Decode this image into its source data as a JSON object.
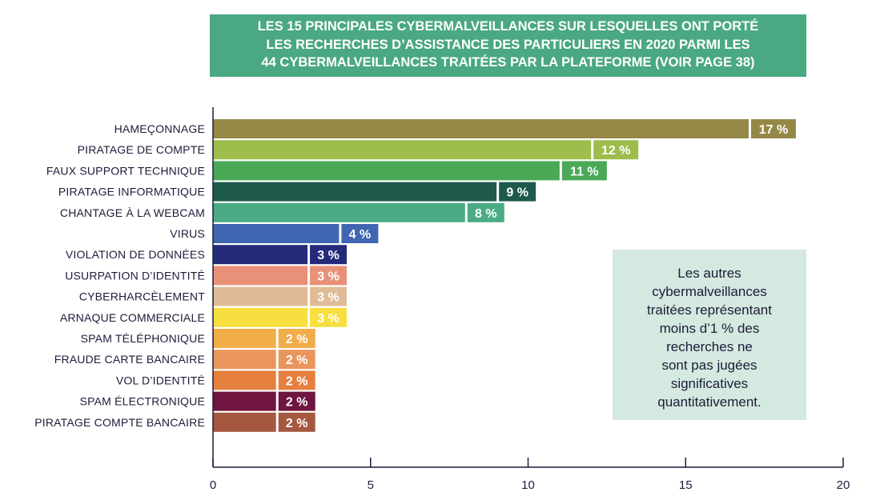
{
  "title_lines": [
    "LES 15 PRINCIPALES CYBERMALVEILLANCES SUR LESQUELLES ONT PORTÉ",
    "LES RECHERCHES D’ASSISTANCE DES PARTICULIERS EN 2020 PARMI LES",
    "44 CYBERMALVEILLANCES TRAITÉES PAR LA PLATEFORME (VOIR PAGE 38)"
  ],
  "note_lines": [
    "Les autres",
    "cybermalveillances",
    "traitées représentant",
    "moins d’1 % des",
    "recherches ne",
    "sont pas jugées",
    "significatives",
    "quantitativement."
  ],
  "chart_data": {
    "type": "bar",
    "orientation": "horizontal",
    "categories": [
      "HAMEÇONNAGE",
      "PIRATAGE DE COMPTE",
      "FAUX SUPPORT TECHNIQUE",
      "PIRATAGE INFORMATIQUE",
      "CHANTAGE À LA WEBCAM",
      "VIRUS",
      "VIOLATION DE DONNÉES",
      "USURPATION D’IDENTITÉ",
      "CYBERHARCÈLEMENT",
      "ARNAQUE COMMERCIALE",
      "SPAM TÉLÉPHONIQUE",
      "FRAUDE CARTE BANCAIRE",
      "VOL D’IDENTITÉ",
      "SPAM ÉLECTRONIQUE",
      "PIRATAGE COMPTE BANCAIRE"
    ],
    "values": [
      17,
      12,
      11,
      9,
      8,
      4,
      3,
      3,
      3,
      3,
      2,
      2,
      2,
      2,
      2
    ],
    "value_labels": [
      "17 %",
      "12 %",
      "11 %",
      "9 %",
      "8 %",
      "4 %",
      "3 %",
      "3 %",
      "3 %",
      "3 %",
      "2 %",
      "2 %",
      "2 %",
      "2 %",
      "2 %"
    ],
    "colors": [
      "#958847",
      "#9ebd4c",
      "#4aa856",
      "#1e5a4c",
      "#4aab84",
      "#4066b2",
      "#252b7a",
      "#e99178",
      "#dfbc97",
      "#f6df3f",
      "#f1ad48",
      "#eb955e",
      "#e6803f",
      "#6f153f",
      "#a5573f"
    ],
    "xlim": [
      0,
      20
    ],
    "xticks": [
      0,
      5,
      10,
      15,
      20
    ],
    "xlabel": "",
    "ylabel": "",
    "grid": false
  }
}
